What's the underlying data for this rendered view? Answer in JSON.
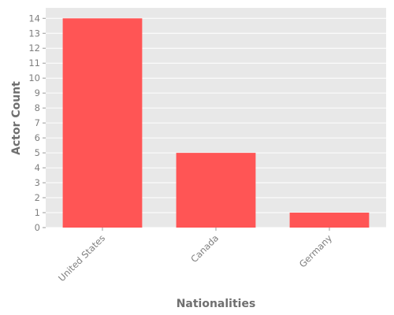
{
  "chart_data": {
    "type": "bar",
    "title": "",
    "xlabel": "Nationalities",
    "ylabel": "Actor Count",
    "categories": [
      "United States",
      "Canada",
      "Germany"
    ],
    "values": [
      14,
      5,
      1
    ],
    "ylim": [
      0,
      14.7
    ],
    "yticks": [
      0,
      1,
      2,
      3,
      4,
      5,
      6,
      7,
      8,
      9,
      10,
      11,
      12,
      13,
      14
    ],
    "grid": true,
    "legend": "none",
    "colors": {
      "bar": "#ff5555",
      "plot_background": "#e8e8e8",
      "grid": "#ffffff",
      "text": "#7f7f7f"
    }
  }
}
